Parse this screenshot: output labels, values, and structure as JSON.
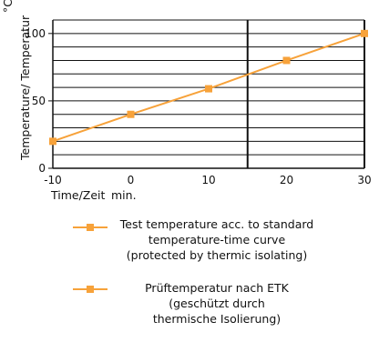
{
  "chart_data": {
    "type": "line",
    "ylabel_parts": [
      "Temperature/ Temperatur",
      "°C"
    ],
    "xlabel": "Time/Zeit",
    "xunit": "min.",
    "xlim": [
      -10,
      30
    ],
    "ylim": [
      0,
      110
    ],
    "xticks": [
      "-10",
      "0",
      "10",
      "20",
      "30"
    ],
    "yticks": [
      "0",
      "50",
      "100"
    ],
    "xtick_values": [
      -10,
      0,
      10,
      20,
      30
    ],
    "ytick_values": [
      0,
      50,
      100
    ],
    "grid": true,
    "series": [
      {
        "name": "Test temperature acc. to standard\ntemperature-time curve\n(protected by thermic isolating)",
        "color": "#f7a23a",
        "x": [
          -10,
          0,
          10,
          20,
          30
        ],
        "y": [
          20,
          40,
          59,
          80,
          100
        ]
      }
    ],
    "legend": [
      {
        "label": "Test temperature acc. to standard\ntemperature-time curve\n(protected by thermic isolating)",
        "color": "#f7a23a"
      },
      {
        "label": "Prüftemperatur nach ETK\n(geschützt durch\nthermische Isolierung)",
        "color": "#f7a23a"
      }
    ]
  }
}
